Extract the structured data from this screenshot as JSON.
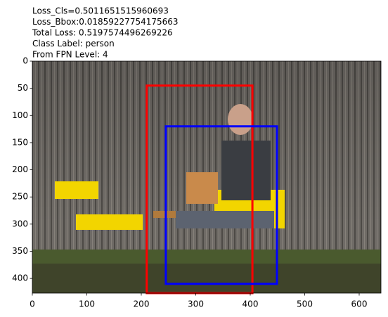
{
  "chart_data": {
    "type": "image-boxes",
    "title_lines": [
      "Loss_Cls=0.5011651515960693",
      "Loss_Bbox:0.01859227754175663",
      "Total Loss: 0.5197574496269226",
      "Class Label: person",
      "From FPN Level: 4"
    ],
    "xlim": [
      0,
      640
    ],
    "ylim": [
      427,
      0
    ],
    "xticks": [
      0,
      100,
      200,
      300,
      400,
      500,
      600
    ],
    "yticks": [
      0,
      50,
      100,
      150,
      200,
      250,
      300,
      350,
      400
    ],
    "boxes": [
      {
        "color": "#ff0000",
        "x": [
          210,
          404
        ],
        "y": [
          45,
          427
        ]
      },
      {
        "color": "#0000ff",
        "x": [
          245,
          449
        ],
        "y": [
          120,
          410
        ]
      }
    ]
  }
}
